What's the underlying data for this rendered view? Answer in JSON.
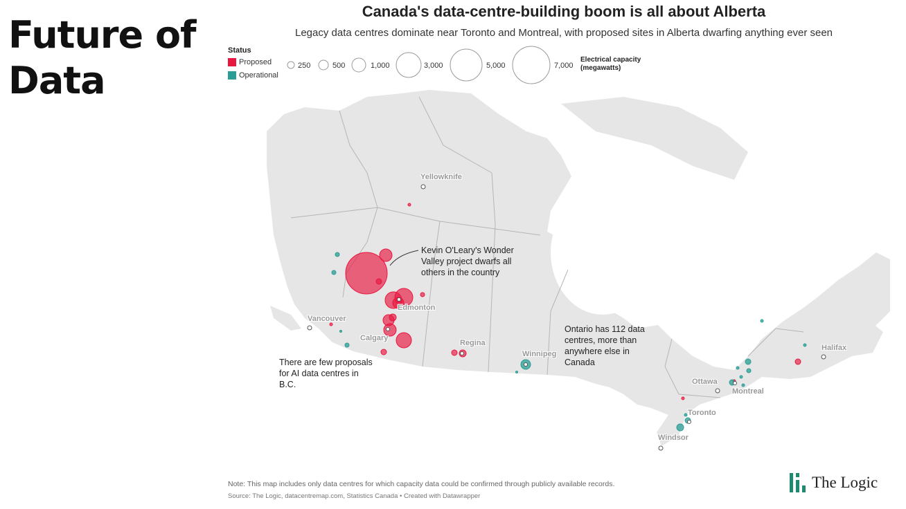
{
  "slide": {
    "title_line1": "Future of",
    "title_line2": "Data"
  },
  "map": {
    "title": "Canada's data-centre-building boom is all about Alberta",
    "subtitle": "Legacy data centres dominate near Toronto and Montreal, with proposed sites in Alberta dwarfing anything ever seen"
  },
  "legend": {
    "status_title": "Status",
    "proposed": {
      "label": "Proposed",
      "color": "#e8173f"
    },
    "operational": {
      "label": "Operational",
      "color": "#2a9d94"
    },
    "capacity_title_line1": "Electrical capacity",
    "capacity_title_line2": "(megawatts)",
    "sizes": [
      "250",
      "500",
      "1,000",
      "3,000",
      "5,000",
      "7,000"
    ]
  },
  "cities": [
    "Yellowknife",
    "Edmonton",
    "Vancouver",
    "Calgary",
    "Regina",
    "Winnipeg",
    "Ottawa",
    "Montreal",
    "Toronto",
    "Windsor",
    "Halifax"
  ],
  "annotations": {
    "wonder_valley": "Kevin O'Leary's Wonder Valley project dwarfs all others in the country",
    "bc": "There are few proposals for AI data centres in B.C.",
    "ontario": "Ontario has 112 data centres, more than anywhere else in Canada"
  },
  "footer": {
    "note": "Note: This map includes only data centres for which capacity data could be confirmed through publicly available records.",
    "source": "Source: The Logic, datacentremap.com, Statistics Canada • Created with Datawrapper",
    "brand": "The Logic"
  },
  "colors": {
    "land": "#e6e6e6",
    "border": "#ffffff",
    "proposed": "#e8173f",
    "operational": "#2a9d94"
  }
}
